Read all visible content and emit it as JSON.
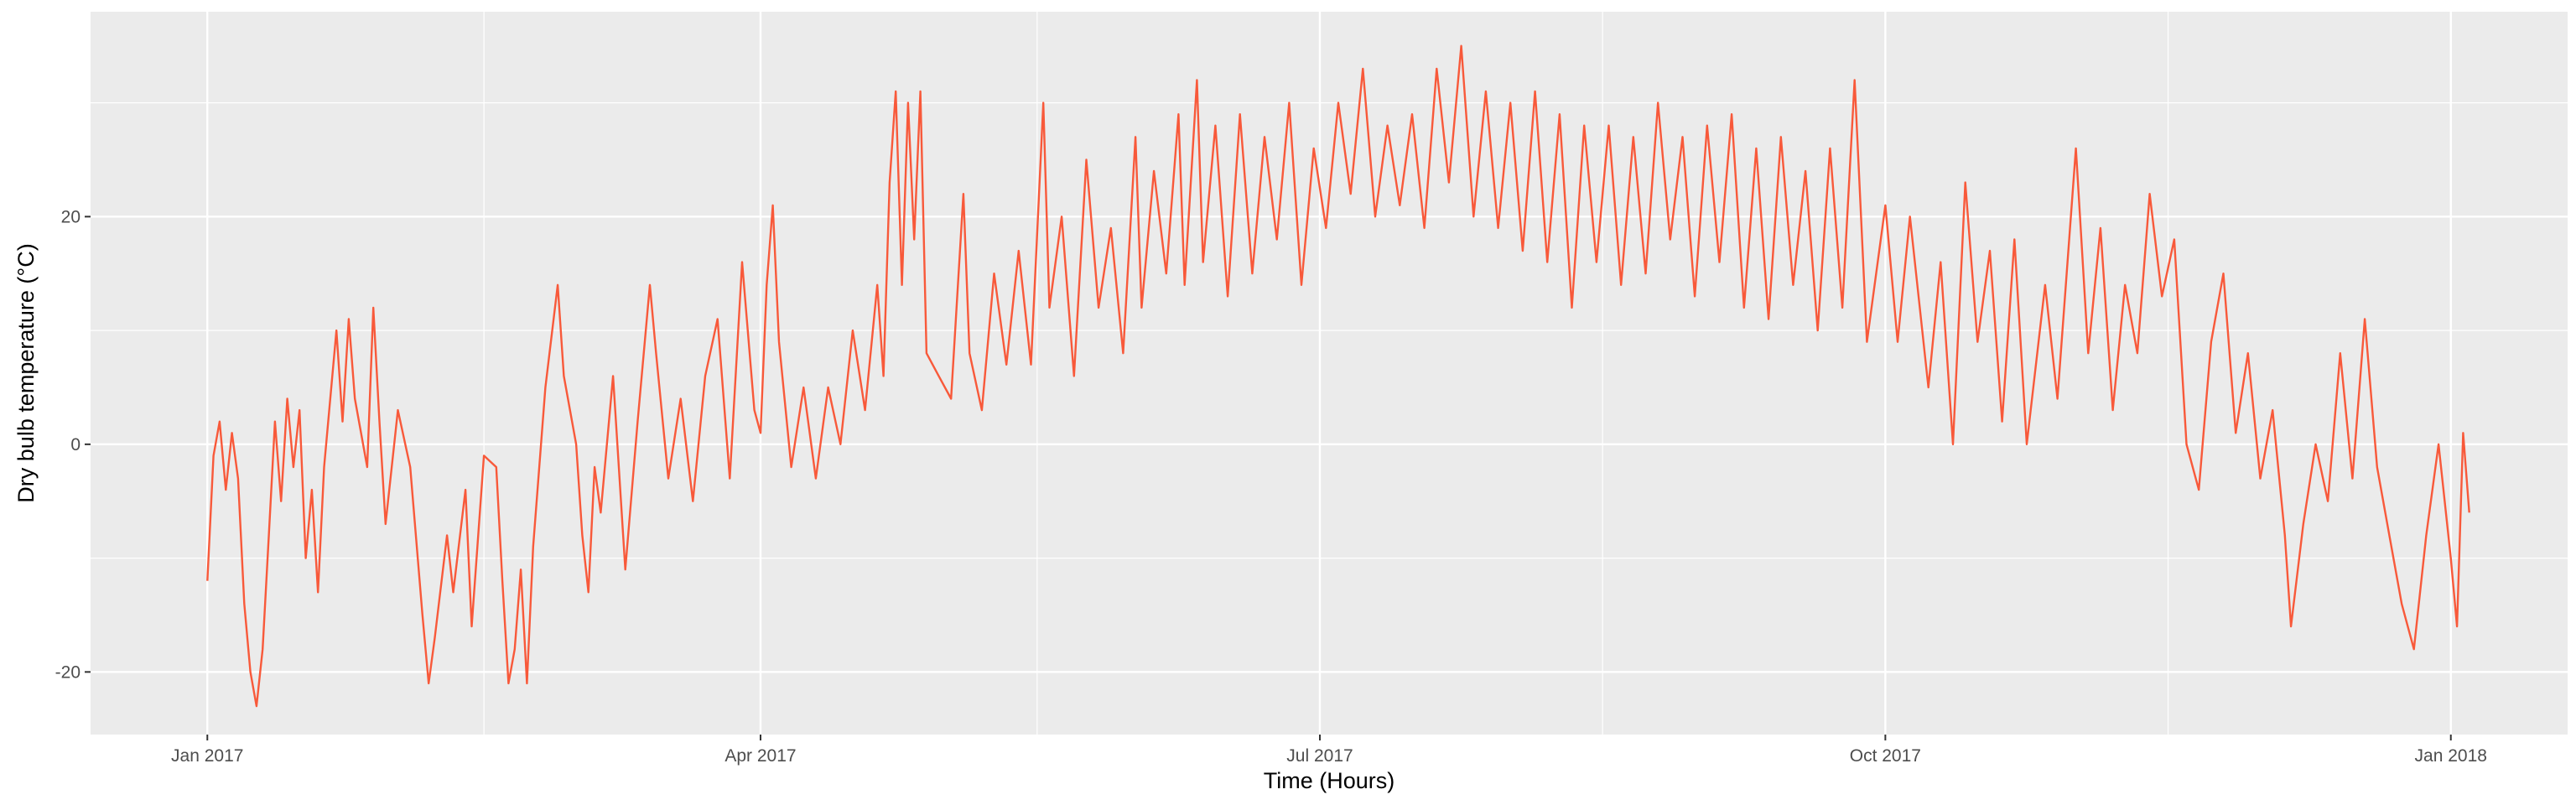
{
  "chart_data": {
    "type": "line",
    "xlabel": "Time (Hours)",
    "ylabel": "Dry bulb temperature (°C)",
    "x_range": [
      "2016-12-13",
      "2018-01-20"
    ],
    "ylim": [
      -25.5,
      38
    ],
    "x_ticks": [
      {
        "date": "2017-01-01",
        "label": "Jan 2017"
      },
      {
        "date": "2017-04-01",
        "label": "Apr 2017"
      },
      {
        "date": "2017-07-01",
        "label": "Jul 2017"
      },
      {
        "date": "2017-10-01",
        "label": "Oct 2017"
      },
      {
        "date": "2018-01-01",
        "label": "Jan 2018"
      }
    ],
    "x_minor_ticks": [
      "2017-02-15",
      "2017-05-16",
      "2017-08-16",
      "2017-11-16"
    ],
    "y_ticks": [
      -20,
      0,
      20
    ],
    "y_minor_ticks": [
      -10,
      10,
      30
    ],
    "grid": true,
    "series": [
      {
        "color": "#F8593A",
        "points": [
          [
            "2017-01-01",
            -12
          ],
          [
            "2017-01-02",
            -1
          ],
          [
            "2017-01-03",
            2
          ],
          [
            "2017-01-04",
            -4
          ],
          [
            "2017-01-05",
            1
          ],
          [
            "2017-01-06",
            -3
          ],
          [
            "2017-01-07",
            -14
          ],
          [
            "2017-01-08",
            -20
          ],
          [
            "2017-01-09",
            -23
          ],
          [
            "2017-01-10",
            -18
          ],
          [
            "2017-01-11",
            -8
          ],
          [
            "2017-01-12",
            2
          ],
          [
            "2017-01-13",
            -5
          ],
          [
            "2017-01-14",
            4
          ],
          [
            "2017-01-15",
            -2
          ],
          [
            "2017-01-16",
            3
          ],
          [
            "2017-01-17",
            -10
          ],
          [
            "2017-01-18",
            -4
          ],
          [
            "2017-01-19",
            -13
          ],
          [
            "2017-01-20",
            -2
          ],
          [
            "2017-01-22",
            10
          ],
          [
            "2017-01-23",
            2
          ],
          [
            "2017-01-24",
            11
          ],
          [
            "2017-01-25",
            4
          ],
          [
            "2017-01-27",
            -2
          ],
          [
            "2017-01-28",
            12
          ],
          [
            "2017-01-29",
            2
          ],
          [
            "2017-01-30",
            -7
          ],
          [
            "2017-02-01",
            3
          ],
          [
            "2017-02-03",
            -2
          ],
          [
            "2017-02-05",
            -15
          ],
          [
            "2017-02-06",
            -21
          ],
          [
            "2017-02-07",
            -17
          ],
          [
            "2017-02-09",
            -8
          ],
          [
            "2017-02-10",
            -13
          ],
          [
            "2017-02-12",
            -4
          ],
          [
            "2017-02-13",
            -16
          ],
          [
            "2017-02-15",
            -1
          ],
          [
            "2017-02-17",
            -2
          ],
          [
            "2017-02-18",
            -12
          ],
          [
            "2017-02-19",
            -21
          ],
          [
            "2017-02-20",
            -18
          ],
          [
            "2017-02-21",
            -11
          ],
          [
            "2017-02-22",
            -21
          ],
          [
            "2017-02-23",
            -9
          ],
          [
            "2017-02-25",
            5
          ],
          [
            "2017-02-27",
            14
          ],
          [
            "2017-02-28",
            6
          ],
          [
            "2017-03-02",
            0
          ],
          [
            "2017-03-03",
            -8
          ],
          [
            "2017-03-04",
            -13
          ],
          [
            "2017-03-05",
            -2
          ],
          [
            "2017-03-06",
            -6
          ],
          [
            "2017-03-08",
            6
          ],
          [
            "2017-03-10",
            -11
          ],
          [
            "2017-03-12",
            2
          ],
          [
            "2017-03-14",
            14
          ],
          [
            "2017-03-15",
            8
          ],
          [
            "2017-03-17",
            -3
          ],
          [
            "2017-03-19",
            4
          ],
          [
            "2017-03-21",
            -5
          ],
          [
            "2017-03-23",
            6
          ],
          [
            "2017-03-25",
            11
          ],
          [
            "2017-03-27",
            -3
          ],
          [
            "2017-03-29",
            16
          ],
          [
            "2017-03-31",
            3
          ],
          [
            "2017-04-01",
            1
          ],
          [
            "2017-04-02",
            14
          ],
          [
            "2017-04-03",
            21
          ],
          [
            "2017-04-04",
            9
          ],
          [
            "2017-04-06",
            -2
          ],
          [
            "2017-04-08",
            5
          ],
          [
            "2017-04-10",
            -3
          ],
          [
            "2017-04-12",
            5
          ],
          [
            "2017-04-14",
            0
          ],
          [
            "2017-04-16",
            10
          ],
          [
            "2017-04-18",
            3
          ],
          [
            "2017-04-20",
            14
          ],
          [
            "2017-04-21",
            6
          ],
          [
            "2017-04-22",
            23
          ],
          [
            "2017-04-23",
            31
          ],
          [
            "2017-04-24",
            14
          ],
          [
            "2017-04-25",
            30
          ],
          [
            "2017-04-26",
            18
          ],
          [
            "2017-04-27",
            31
          ],
          [
            "2017-04-28",
            8
          ],
          [
            "2017-04-30",
            6
          ],
          [
            "2017-05-02",
            4
          ],
          [
            "2017-05-04",
            22
          ],
          [
            "2017-05-05",
            8
          ],
          [
            "2017-05-07",
            3
          ],
          [
            "2017-05-09",
            15
          ],
          [
            "2017-05-11",
            7
          ],
          [
            "2017-05-13",
            17
          ],
          [
            "2017-05-15",
            7
          ],
          [
            "2017-05-17",
            30
          ],
          [
            "2017-05-18",
            12
          ],
          [
            "2017-05-20",
            20
          ],
          [
            "2017-05-22",
            6
          ],
          [
            "2017-05-24",
            25
          ],
          [
            "2017-05-26",
            12
          ],
          [
            "2017-05-28",
            19
          ],
          [
            "2017-05-30",
            8
          ],
          [
            "2017-06-01",
            27
          ],
          [
            "2017-06-02",
            12
          ],
          [
            "2017-06-04",
            24
          ],
          [
            "2017-06-06",
            15
          ],
          [
            "2017-06-08",
            29
          ],
          [
            "2017-06-09",
            14
          ],
          [
            "2017-06-11",
            32
          ],
          [
            "2017-06-12",
            16
          ],
          [
            "2017-06-14",
            28
          ],
          [
            "2017-06-16",
            13
          ],
          [
            "2017-06-18",
            29
          ],
          [
            "2017-06-20",
            15
          ],
          [
            "2017-06-22",
            27
          ],
          [
            "2017-06-24",
            18
          ],
          [
            "2017-06-26",
            30
          ],
          [
            "2017-06-28",
            14
          ],
          [
            "2017-06-30",
            26
          ],
          [
            "2017-07-02",
            19
          ],
          [
            "2017-07-04",
            30
          ],
          [
            "2017-07-06",
            22
          ],
          [
            "2017-07-08",
            33
          ],
          [
            "2017-07-10",
            20
          ],
          [
            "2017-07-12",
            28
          ],
          [
            "2017-07-14",
            21
          ],
          [
            "2017-07-16",
            29
          ],
          [
            "2017-07-18",
            19
          ],
          [
            "2017-07-20",
            33
          ],
          [
            "2017-07-22",
            23
          ],
          [
            "2017-07-24",
            35
          ],
          [
            "2017-07-26",
            20
          ],
          [
            "2017-07-28",
            31
          ],
          [
            "2017-07-30",
            19
          ],
          [
            "2017-08-01",
            30
          ],
          [
            "2017-08-03",
            17
          ],
          [
            "2017-08-05",
            31
          ],
          [
            "2017-08-07",
            16
          ],
          [
            "2017-08-09",
            29
          ],
          [
            "2017-08-11",
            12
          ],
          [
            "2017-08-13",
            28
          ],
          [
            "2017-08-15",
            16
          ],
          [
            "2017-08-17",
            28
          ],
          [
            "2017-08-19",
            14
          ],
          [
            "2017-08-21",
            27
          ],
          [
            "2017-08-23",
            15
          ],
          [
            "2017-08-25",
            30
          ],
          [
            "2017-08-27",
            18
          ],
          [
            "2017-08-29",
            27
          ],
          [
            "2017-08-31",
            13
          ],
          [
            "2017-09-02",
            28
          ],
          [
            "2017-09-04",
            16
          ],
          [
            "2017-09-06",
            29
          ],
          [
            "2017-09-08",
            12
          ],
          [
            "2017-09-10",
            26
          ],
          [
            "2017-09-12",
            11
          ],
          [
            "2017-09-14",
            27
          ],
          [
            "2017-09-16",
            14
          ],
          [
            "2017-09-18",
            24
          ],
          [
            "2017-09-20",
            10
          ],
          [
            "2017-09-22",
            26
          ],
          [
            "2017-09-24",
            12
          ],
          [
            "2017-09-26",
            32
          ],
          [
            "2017-09-28",
            9
          ],
          [
            "2017-10-01",
            21
          ],
          [
            "2017-10-03",
            9
          ],
          [
            "2017-10-05",
            20
          ],
          [
            "2017-10-08",
            5
          ],
          [
            "2017-10-10",
            16
          ],
          [
            "2017-10-12",
            0
          ],
          [
            "2017-10-14",
            23
          ],
          [
            "2017-10-16",
            9
          ],
          [
            "2017-10-18",
            17
          ],
          [
            "2017-10-20",
            2
          ],
          [
            "2017-10-22",
            18
          ],
          [
            "2017-10-24",
            0
          ],
          [
            "2017-10-27",
            14
          ],
          [
            "2017-10-29",
            4
          ],
          [
            "2017-11-01",
            26
          ],
          [
            "2017-11-03",
            8
          ],
          [
            "2017-11-05",
            19
          ],
          [
            "2017-11-07",
            3
          ],
          [
            "2017-11-09",
            14
          ],
          [
            "2017-11-11",
            8
          ],
          [
            "2017-11-13",
            22
          ],
          [
            "2017-11-15",
            13
          ],
          [
            "2017-11-17",
            18
          ],
          [
            "2017-11-19",
            0
          ],
          [
            "2017-11-21",
            -4
          ],
          [
            "2017-11-23",
            9
          ],
          [
            "2017-11-25",
            15
          ],
          [
            "2017-11-27",
            1
          ],
          [
            "2017-11-29",
            8
          ],
          [
            "2017-12-01",
            -3
          ],
          [
            "2017-12-03",
            3
          ],
          [
            "2017-12-05",
            -8
          ],
          [
            "2017-12-06",
            -16
          ],
          [
            "2017-12-08",
            -7
          ],
          [
            "2017-12-10",
            0
          ],
          [
            "2017-12-12",
            -5
          ],
          [
            "2017-12-14",
            8
          ],
          [
            "2017-12-16",
            -3
          ],
          [
            "2017-12-18",
            11
          ],
          [
            "2017-12-20",
            -2
          ],
          [
            "2017-12-22",
            -8
          ],
          [
            "2017-12-24",
            -14
          ],
          [
            "2017-12-26",
            -18
          ],
          [
            "2017-12-28",
            -8
          ],
          [
            "2017-12-30",
            0
          ],
          [
            "2018-01-01",
            -10
          ],
          [
            "2018-01-02",
            -16
          ],
          [
            "2018-01-03",
            1
          ],
          [
            "2018-01-04",
            -6
          ]
        ]
      }
    ]
  }
}
